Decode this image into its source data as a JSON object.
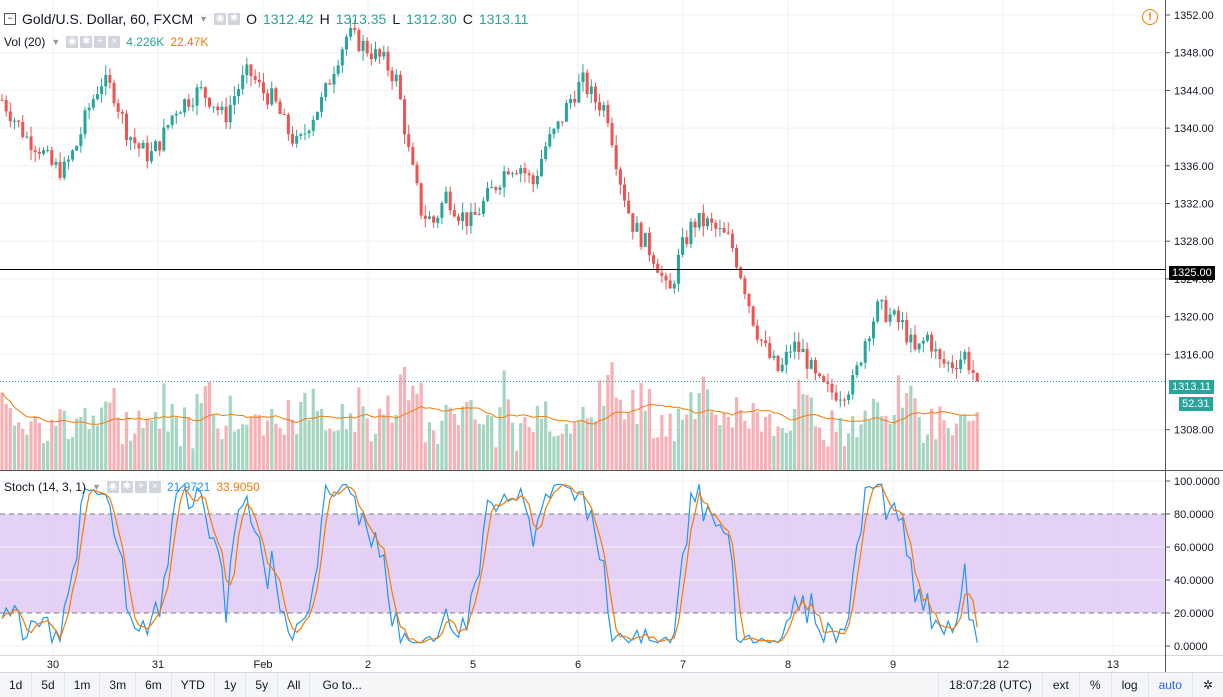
{
  "legend": {
    "symbol": "Gold/U.S. Dollar, 60, FXCM",
    "open_label": "O",
    "open": "1312.42",
    "high_label": "H",
    "high": "1313.35",
    "low_label": "L",
    "low": "1312.30",
    "close_label": "C",
    "close": "1313.11"
  },
  "volume": {
    "label": "Vol (20)",
    "value1": "4.226K",
    "value2": "22.47K"
  },
  "stoch": {
    "label": "Stoch (14, 3, 1)",
    "k": "21.9721",
    "d": "33.9050"
  },
  "price_axis": {
    "ticks": [
      "1352.00",
      "1348.00",
      "1344.00",
      "1340.00",
      "1336.00",
      "1332.00",
      "1328.00",
      "1324.00",
      "1320.00",
      "1316.00",
      "1308.00"
    ],
    "horizontal_line_label": "1325.00",
    "last_price_label": "1313.11",
    "volume_label": "52.31"
  },
  "stoch_axis": {
    "ticks": [
      "100.0000",
      "80.0000",
      "60.0000",
      "40.0000",
      "20.0000",
      "0.0000"
    ]
  },
  "time_axis": {
    "labels": [
      "30",
      "31",
      "Feb",
      "2",
      "5",
      "6",
      "7",
      "8",
      "9",
      "12",
      "13"
    ]
  },
  "bottom_bar": {
    "ranges": [
      "1d",
      "5d",
      "1m",
      "3m",
      "6m",
      "YTD",
      "1y",
      "5y",
      "All"
    ],
    "goto": "Go to...",
    "time": "18:07:28 (UTC)",
    "ext": "ext",
    "pct": "%",
    "log": "log",
    "auto": "auto"
  },
  "colors": {
    "up": "#26a69a",
    "down": "#ef5350",
    "vol_up": "#a5d6c2",
    "vol_down": "#f7b0b5",
    "k_line": "#2196f3",
    "d_line": "#f57c00",
    "stoch_band": "#e1c9f5",
    "hline": "#000000",
    "last_price": "#26a69a"
  },
  "chart_data": {
    "type": "candlestick",
    "y_range": [
      1304,
      1353
    ],
    "horizontal_line": 1325.0,
    "last_price": 1313.11,
    "price_path": [
      1343,
      1341,
      1339,
      1338,
      1336,
      1335.5,
      1338,
      1342,
      1345,
      1344,
      1340,
      1338,
      1337,
      1339,
      1342,
      1343,
      1344,
      1343,
      1341,
      1344,
      1346,
      1344,
      1343,
      1340,
      1338,
      1341,
      1343,
      1347,
      1350,
      1349,
      1348,
      1347,
      1345,
      1337,
      1331,
      1330,
      1333,
      1331,
      1330,
      1332,
      1334,
      1336,
      1336,
      1334,
      1338,
      1340,
      1343,
      1345,
      1343,
      1342,
      1335,
      1330,
      1328,
      1326,
      1322,
      1327,
      1330,
      1330,
      1329,
      1328,
      1324,
      1319,
      1316,
      1314,
      1317,
      1316,
      1313,
      1312,
      1312,
      1313,
      1318,
      1321,
      1320,
      1319,
      1316,
      1318,
      1315,
      1315,
      1316,
      1313.11
    ]
  }
}
